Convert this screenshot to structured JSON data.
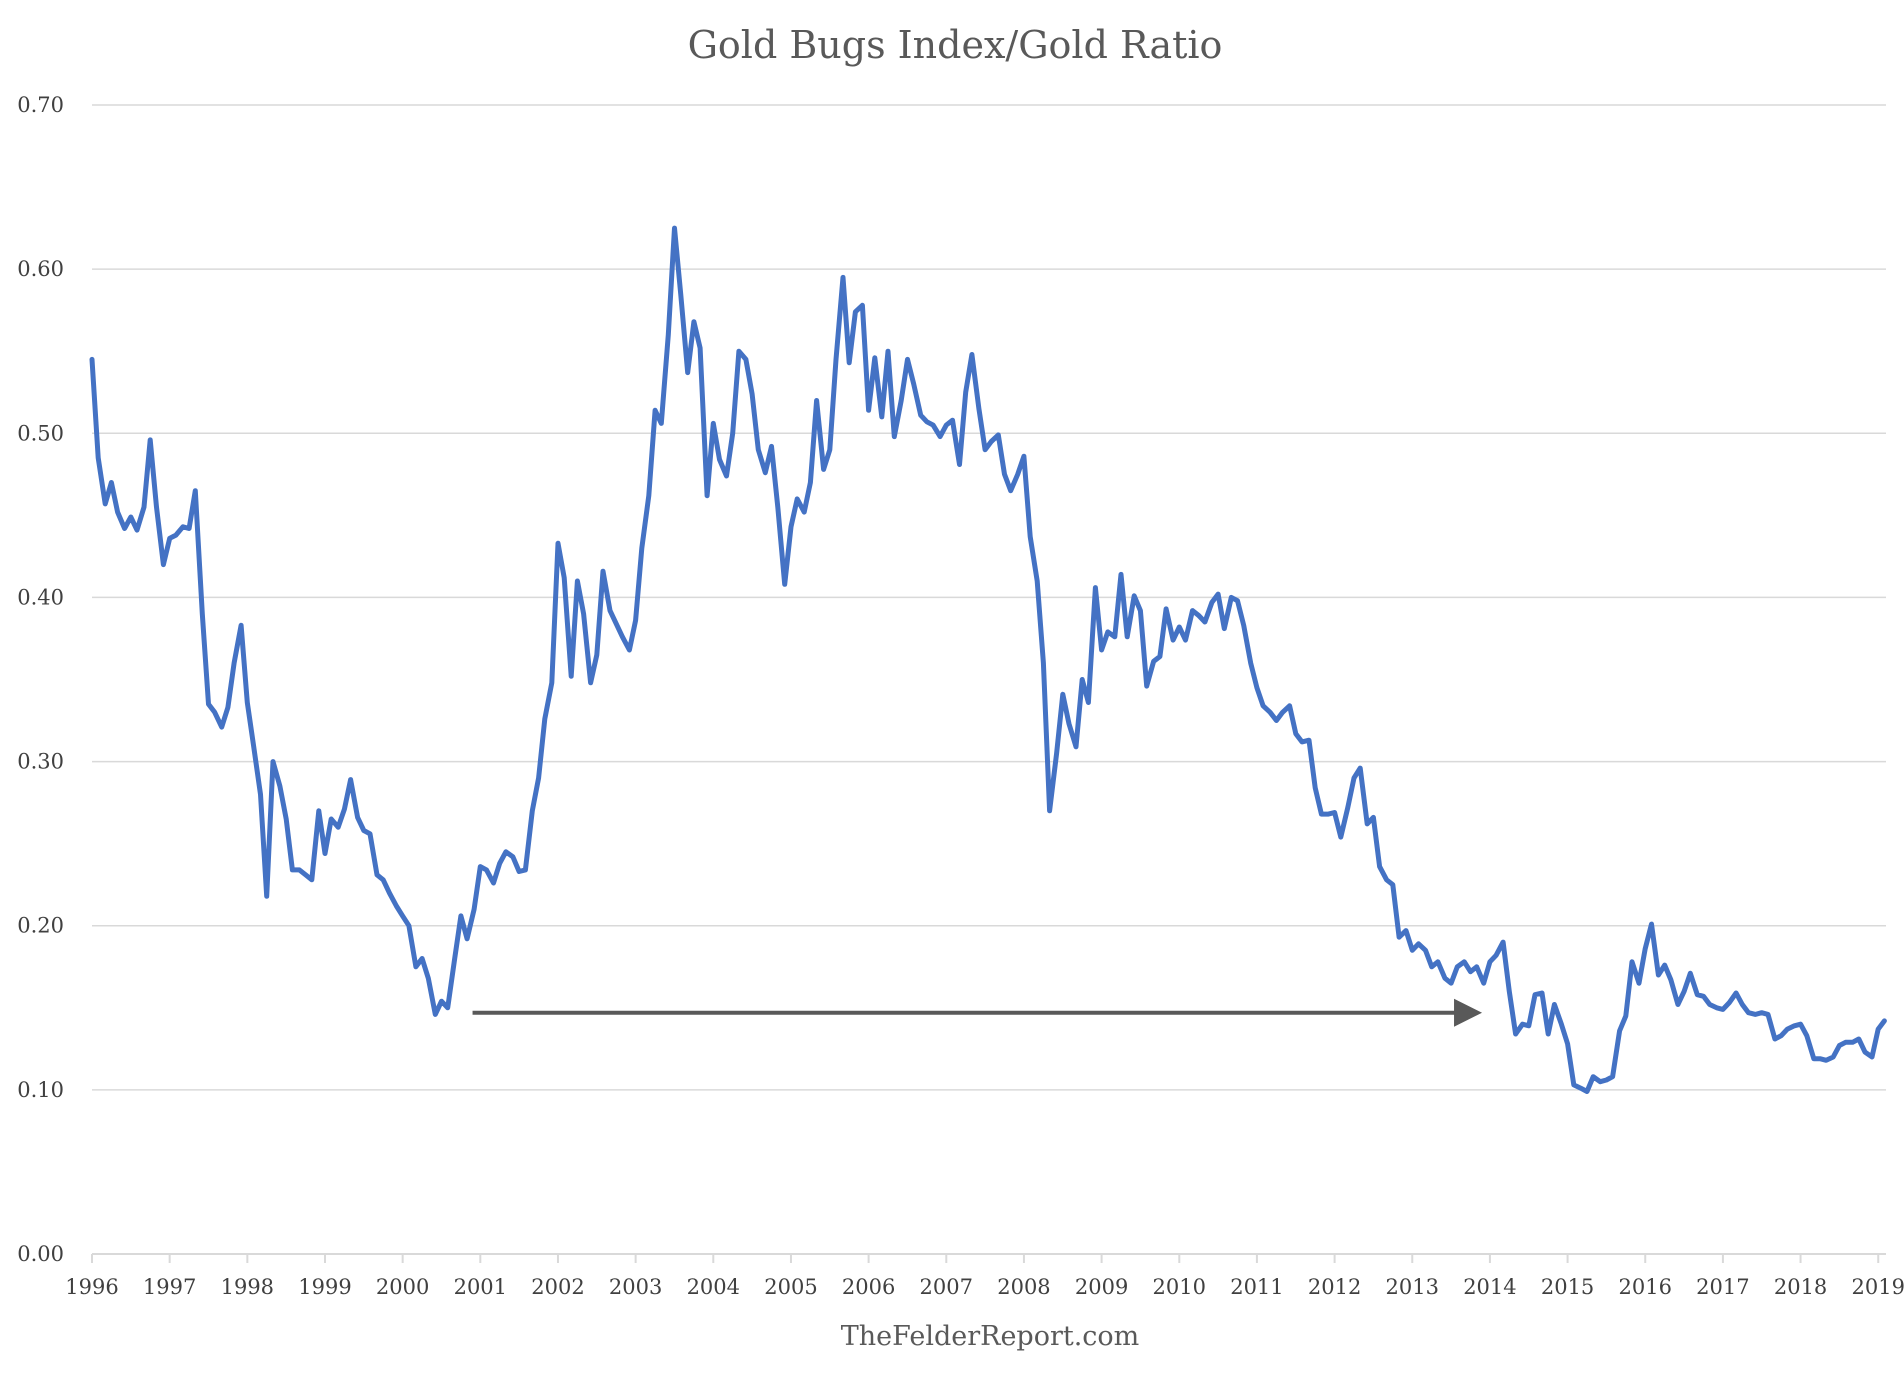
{
  "chart_data": {
    "type": "line",
    "title": "Gold Bugs Index/Gold Ratio",
    "credit": "TheFelderReport.com",
    "xlabel": "",
    "ylabel": "",
    "xlim": [
      1996.0,
      2019.1
    ],
    "ylim": [
      0.0,
      0.7
    ],
    "x_ticks": [
      "1996",
      "1997",
      "1998",
      "1999",
      "2000",
      "2001",
      "2002",
      "2003",
      "2004",
      "2005",
      "2006",
      "2007",
      "2008",
      "2009",
      "2010",
      "2011",
      "2012",
      "2013",
      "2014",
      "2015",
      "2016",
      "2017",
      "2018",
      "2019"
    ],
    "y_ticks": [
      "0.00",
      "0.10",
      "0.20",
      "0.30",
      "0.40",
      "0.50",
      "0.60",
      "0.70"
    ],
    "grid": true,
    "legend": "none",
    "colors": {
      "series": "#4472C4",
      "grid": "#D9D9D9",
      "arrow": "#595959",
      "text": "#404040"
    },
    "annotations": [
      {
        "type": "arrow",
        "from": {
          "x": 2000.9,
          "y": 0.147
        },
        "to": {
          "x": 2013.95,
          "y": 0.147
        }
      }
    ],
    "series": [
      {
        "x": [
          1996.0,
          1996.08,
          1996.17,
          1996.25,
          1996.33,
          1996.42,
          1996.5,
          1996.58,
          1996.67,
          1996.75,
          1996.83,
          1996.92,
          1997.0,
          1997.08,
          1997.17,
          1997.25,
          1997.33,
          1997.42,
          1997.5,
          1997.58,
          1997.67,
          1997.75,
          1997.83,
          1997.92,
          1998.0,
          1998.08,
          1998.17,
          1998.25,
          1998.33,
          1998.42,
          1998.5,
          1998.58,
          1998.67,
          1998.75,
          1998.83,
          1998.92,
          1999.0,
          1999.08,
          1999.17,
          1999.25,
          1999.33,
          1999.42,
          1999.5,
          1999.58,
          1999.67,
          1999.75,
          1999.83,
          1999.92,
          2000.0,
          2000.08,
          2000.17,
          2000.25,
          2000.33,
          2000.42,
          2000.5,
          2000.58,
          2000.67,
          2000.75,
          2000.83,
          2000.92,
          2001.0,
          2001.08,
          2001.17,
          2001.25,
          2001.33,
          2001.42,
          2001.5,
          2001.58,
          2001.67,
          2001.75,
          2001.83,
          2001.92,
          2002.0,
          2002.08,
          2002.17,
          2002.25,
          2002.33,
          2002.42,
          2002.5,
          2002.58,
          2002.67,
          2002.75,
          2002.83,
          2002.92,
          2003.0,
          2003.08,
          2003.17,
          2003.25,
          2003.33,
          2003.42,
          2003.5,
          2003.58,
          2003.67,
          2003.75,
          2003.83,
          2003.92,
          2004.0,
          2004.08,
          2004.17,
          2004.25,
          2004.33,
          2004.42,
          2004.5,
          2004.58,
          2004.67,
          2004.75,
          2004.83,
          2004.92,
          2005.0,
          2005.08,
          2005.17,
          2005.25,
          2005.33,
          2005.42,
          2005.5,
          2005.58,
          2005.67,
          2005.75,
          2005.83,
          2005.92,
          2006.0,
          2006.08,
          2006.17,
          2006.25,
          2006.33,
          2006.42,
          2006.5,
          2006.58,
          2006.67,
          2006.75,
          2006.83,
          2006.92,
          2007.0,
          2007.08,
          2007.17,
          2007.25,
          2007.33,
          2007.42,
          2007.5,
          2007.58,
          2007.67,
          2007.75,
          2007.83,
          2007.92,
          2008.0,
          2008.08,
          2008.17,
          2008.25,
          2008.33,
          2008.42,
          2008.5,
          2008.58,
          2008.67,
          2008.75,
          2008.83,
          2008.92,
          2009.0,
          2009.08,
          2009.17,
          2009.25,
          2009.33,
          2009.42,
          2009.5,
          2009.58,
          2009.67,
          2009.75,
          2009.83,
          2009.92,
          2010.0,
          2010.08,
          2010.17,
          2010.25,
          2010.33,
          2010.42,
          2010.5,
          2010.58,
          2010.67,
          2010.75,
          2010.83,
          2010.92,
          2011.0,
          2011.08,
          2011.17,
          2011.25,
          2011.33,
          2011.42,
          2011.5,
          2011.58,
          2011.67,
          2011.75,
          2011.83,
          2011.92,
          2012.0,
          2012.08,
          2012.17,
          2012.25,
          2012.33,
          2012.42,
          2012.5,
          2012.58,
          2012.67,
          2012.75,
          2012.83,
          2012.92,
          2013.0,
          2013.08,
          2013.17,
          2013.25,
          2013.33,
          2013.42,
          2013.5,
          2013.58,
          2013.67,
          2013.75,
          2013.83,
          2013.92,
          2014.0,
          2014.08,
          2014.17,
          2014.25,
          2014.33,
          2014.42,
          2014.5,
          2014.58,
          2014.67,
          2014.75,
          2014.83,
          2014.92,
          2015.0,
          2015.08,
          2015.17,
          2015.25,
          2015.33,
          2015.42,
          2015.5,
          2015.58,
          2015.67,
          2015.75,
          2015.83,
          2015.92,
          2016.0,
          2016.08,
          2016.17,
          2016.25,
          2016.33,
          2016.42,
          2016.5,
          2016.58,
          2016.67,
          2016.75,
          2016.83,
          2016.92,
          2017.0,
          2017.08,
          2017.17,
          2017.25,
          2017.33,
          2017.42,
          2017.5,
          2017.58,
          2017.67,
          2017.75,
          2017.83,
          2017.92,
          2018.0,
          2018.08,
          2018.17,
          2018.25,
          2018.33,
          2018.42,
          2018.5,
          2018.58,
          2018.67,
          2018.75,
          2018.83,
          2018.92,
          2019.0,
          2019.08
        ],
        "values": [
          0.545,
          0.485,
          0.457,
          0.47,
          0.452,
          0.442,
          0.449,
          0.441,
          0.455,
          0.496,
          0.455,
          0.42,
          0.436,
          0.438,
          0.443,
          0.442,
          0.465,
          0.39,
          0.335,
          0.33,
          0.321,
          0.333,
          0.36,
          0.383,
          0.336,
          0.31,
          0.28,
          0.218,
          0.3,
          0.285,
          0.265,
          0.234,
          0.234,
          0.231,
          0.228,
          0.27,
          0.244,
          0.265,
          0.26,
          0.271,
          0.289,
          0.266,
          0.258,
          0.256,
          0.231,
          0.228,
          0.22,
          0.212,
          0.206,
          0.2,
          0.175,
          0.18,
          0.168,
          0.146,
          0.154,
          0.15,
          0.18,
          0.206,
          0.192,
          0.21,
          0.236,
          0.234,
          0.226,
          0.238,
          0.245,
          0.242,
          0.233,
          0.234,
          0.27,
          0.29,
          0.326,
          0.348,
          0.433,
          0.412,
          0.352,
          0.41,
          0.39,
          0.348,
          0.365,
          0.416,
          0.392,
          0.384,
          0.376,
          0.368,
          0.386,
          0.43,
          0.462,
          0.514,
          0.506,
          0.56,
          0.625,
          0.585,
          0.537,
          0.568,
          0.552,
          0.462,
          0.506,
          0.484,
          0.474,
          0.5,
          0.55,
          0.545,
          0.524,
          0.49,
          0.476,
          0.492,
          0.455,
          0.408,
          0.443,
          0.46,
          0.452,
          0.47,
          0.52,
          0.478,
          0.49,
          0.545,
          0.595,
          0.543,
          0.574,
          0.578,
          0.514,
          0.546,
          0.51,
          0.55,
          0.498,
          0.52,
          0.545,
          0.53,
          0.511,
          0.507,
          0.505,
          0.498,
          0.505,
          0.508,
          0.481,
          0.525,
          0.548,
          0.515,
          0.49,
          0.495,
          0.499,
          0.475,
          0.465,
          0.475,
          0.486,
          0.437,
          0.41,
          0.36,
          0.27,
          0.305,
          0.341,
          0.323,
          0.309,
          0.35,
          0.336,
          0.406,
          0.368,
          0.379,
          0.376,
          0.414,
          0.376,
          0.401,
          0.392,
          0.346,
          0.361,
          0.364,
          0.393,
          0.374,
          0.382,
          0.374,
          0.392,
          0.389,
          0.385,
          0.397,
          0.402,
          0.381,
          0.4,
          0.398,
          0.383,
          0.36,
          0.345,
          0.334,
          0.33,
          0.325,
          0.33,
          0.334,
          0.317,
          0.312,
          0.313,
          0.284,
          0.268,
          0.268,
          0.269,
          0.254,
          0.272,
          0.29,
          0.296,
          0.262,
          0.266,
          0.236,
          0.228,
          0.225,
          0.193,
          0.197,
          0.185,
          0.189,
          0.185,
          0.175,
          0.178,
          0.168,
          0.165,
          0.175,
          0.178,
          0.172,
          0.175,
          0.165,
          0.178,
          0.182,
          0.19,
          0.16,
          0.134,
          0.14,
          0.139,
          0.158,
          0.159,
          0.134,
          0.152,
          0.14,
          0.128,
          0.103,
          0.101,
          0.099,
          0.108,
          0.105,
          0.106,
          0.108,
          0.136,
          0.145,
          0.178,
          0.165,
          0.186,
          0.201,
          0.17,
          0.176,
          0.167,
          0.152,
          0.16,
          0.171,
          0.158,
          0.157,
          0.152,
          0.15,
          0.149,
          0.153,
          0.159,
          0.152,
          0.147,
          0.146,
          0.147,
          0.146,
          0.131,
          0.133,
          0.137,
          0.139,
          0.14,
          0.133,
          0.119,
          0.119,
          0.118,
          0.12,
          0.127,
          0.129,
          0.129,
          0.131,
          0.123,
          0.12,
          0.137,
          0.142
        ]
      }
    ]
  }
}
